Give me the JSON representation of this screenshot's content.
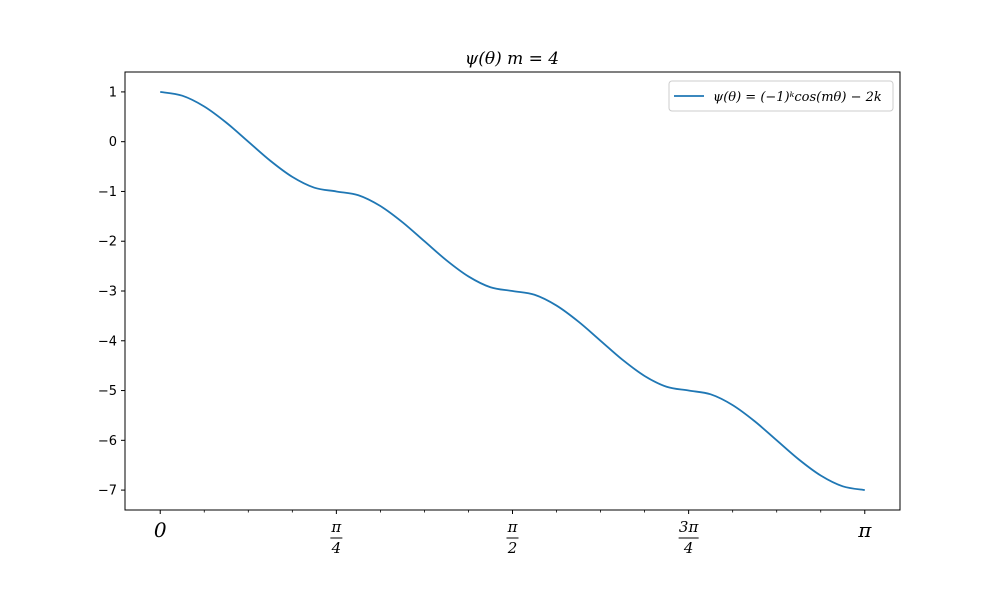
{
  "chart_data": {
    "type": "line",
    "title": "ψ(θ)    m = 4",
    "xlabel": "",
    "ylabel": "",
    "xlim": [
      -0.1571,
      3.2987
    ],
    "ylim": [
      -7.4,
      1.4
    ],
    "grid": false,
    "legend_placement": "top-right",
    "color": "#1f77b4",
    "x_ticks": [
      {
        "value": 0,
        "label": "0"
      },
      {
        "value": 0.785398,
        "label": "π/4",
        "num": "π",
        "den": "4"
      },
      {
        "value": 1.570796,
        "label": "π/2",
        "num": "π",
        "den": "2"
      },
      {
        "value": 2.356194,
        "label": "3π/4",
        "num": "3π",
        "den": "4"
      },
      {
        "value": 3.141593,
        "label": "π"
      }
    ],
    "y_ticks": [
      1,
      0,
      -1,
      -2,
      -3,
      -4,
      -5,
      -6,
      -7
    ],
    "y_tick_labels": [
      "1",
      "0",
      "−1",
      "−2",
      "−3",
      "−4",
      "−5",
      "−6",
      "−7"
    ],
    "series": [
      {
        "name": "ψ(θ) = (−1)ᵏcos(mθ) − 2k",
        "x": [
          0,
          0.0982,
          0.1963,
          0.2945,
          0.3927,
          0.4909,
          0.589,
          0.6872,
          0.7854,
          0.8836,
          0.9817,
          1.0799,
          1.1781,
          1.2763,
          1.3744,
          1.4726,
          1.5708,
          1.669,
          1.7671,
          1.8653,
          1.9635,
          2.0617,
          2.1598,
          2.258,
          2.3562,
          2.4544,
          2.5525,
          2.6507,
          2.7489,
          2.8471,
          2.9452,
          3.0434,
          3.1416
        ],
        "y": [
          1,
          0.924,
          0.707,
          0.383,
          0,
          -0.383,
          -0.707,
          -0.924,
          -1,
          -1.076,
          -1.293,
          -1.617,
          -2,
          -2.383,
          -2.707,
          -2.924,
          -3,
          -3.076,
          -3.293,
          -3.617,
          -4,
          -4.383,
          -4.707,
          -4.924,
          -5,
          -5.076,
          -5.293,
          -5.617,
          -6,
          -6.383,
          -6.707,
          -6.924,
          -7
        ]
      }
    ]
  }
}
